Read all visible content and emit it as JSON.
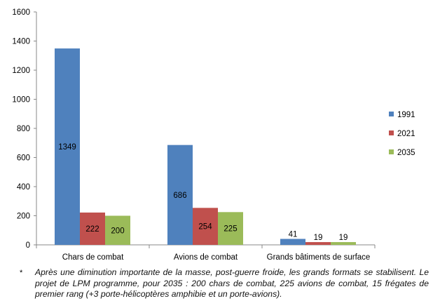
{
  "chart_data": {
    "type": "bar",
    "categories": [
      "Chars de combat",
      "Avions de combat",
      "Grands bâtiments de surface"
    ],
    "series": [
      {
        "name": "1991",
        "color": "#4F81BD",
        "values": [
          1349,
          686,
          41
        ]
      },
      {
        "name": "2021",
        "color": "#C0504D",
        "values": [
          222,
          254,
          19
        ]
      },
      {
        "name": "2035",
        "color": "#9BBB59",
        "values": [
          200,
          225,
          19
        ]
      }
    ],
    "ylim": [
      0,
      1600
    ],
    "yticks": [
      0,
      200,
      400,
      600,
      800,
      1000,
      1200,
      1400,
      1600
    ],
    "grid": false,
    "legend": "right"
  },
  "note": {
    "bullet": "*",
    "text": "Après une diminution importante de la masse, post-guerre froide, les grands formats se stabilisent. Le projet de LPM programme, pour 2035 : 200 chars de combat, 225 avions de combat, 15 frégates de premier rang (+3 porte-hélicoptères amphibie et un porte-avions)."
  }
}
